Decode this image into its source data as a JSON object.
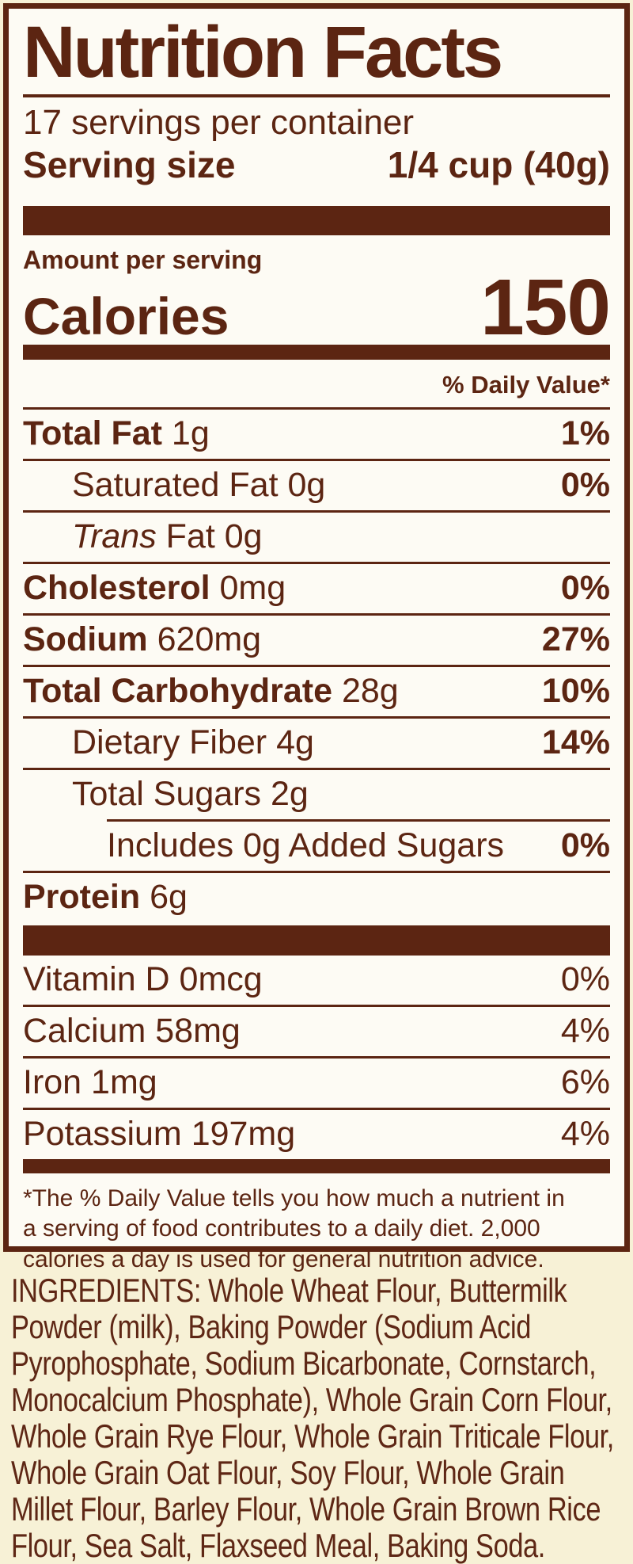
{
  "colors": {
    "brown": "#5c2512",
    "cream_background": "#f7f1d6",
    "label_background": "#fdfbf4"
  },
  "header": {
    "title": "Nutrition Facts",
    "servings_per_container": "17 servings per container",
    "serving_size_label": "Serving size",
    "serving_size_value": "1/4 cup (40g)"
  },
  "calories": {
    "amount_label": "Amount per serving",
    "label": "Calories",
    "value": "150"
  },
  "daily_value_header": "% Daily Value*",
  "rows": [
    {
      "bold": "Total Fat",
      "text": " 1g",
      "dv": "1%"
    },
    {
      "text": "Saturated Fat 0g",
      "dv": "0%"
    },
    {
      "italic": "Trans",
      "text": " Fat 0g",
      "dv": ""
    },
    {
      "bold": "Cholesterol",
      "text": " 0mg",
      "dv": "0%"
    },
    {
      "bold": "Sodium",
      "text": " 620mg",
      "dv": "27%"
    },
    {
      "bold": "Total Carbohydrate",
      "text": " 28g",
      "dv": "10%"
    },
    {
      "text": "Dietary Fiber 4g",
      "dv": "14%"
    },
    {
      "text": "Total Sugars 2g",
      "dv": ""
    },
    {
      "text": "Includes 0g Added Sugars",
      "dv": "0%"
    },
    {
      "bold": "Protein",
      "text": " 6g",
      "dv": ""
    }
  ],
  "vitamins": [
    {
      "text": "Vitamin D 0mcg",
      "dv": "0%"
    },
    {
      "text": "Calcium 58mg",
      "dv": "4%"
    },
    {
      "text": "Iron 1mg",
      "dv": "6%"
    },
    {
      "text": "Potassium 197mg",
      "dv": "4%"
    }
  ],
  "footnote_lines": [
    "*The % Daily Value tells you how much a nutrient in",
    "a serving of food contributes to a daily diet. 2,000",
    "calories a day is used for general nutrition advice."
  ],
  "ingredients_lines": [
    "INGREDIENTS: Whole Wheat Flour, Buttermilk",
    "Powder (milk), Baking Powder (Sodium Acid",
    "Pyrophosphate, Sodium Bicarbonate, Cornstarch,",
    "Monocalcium Phosphate), Whole Grain Corn Flour,",
    "Whole Grain Rye Flour, Whole Grain Triticale Flour,",
    "Whole Grain Oat Flour, Soy Flour, Whole Grain",
    "Millet Flour, Barley Flour, Whole Grain Brown Rice",
    "Flour, Sea Salt, Flaxseed Meal, Baking Soda."
  ]
}
